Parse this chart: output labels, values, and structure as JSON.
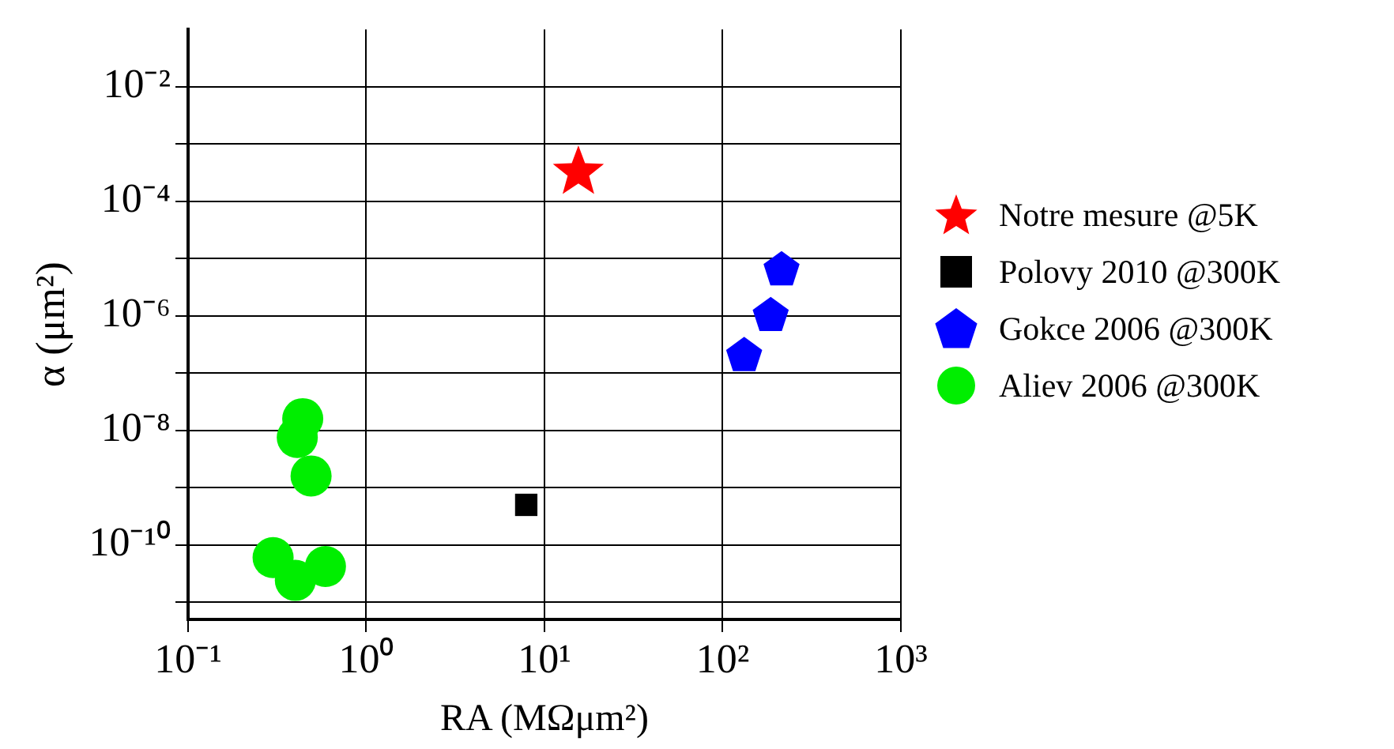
{
  "chart_data": {
    "type": "scatter",
    "xlabel": "RA (MΩμm²)",
    "ylabel": "α (μm²)",
    "log": "xy",
    "grid": true,
    "legend": "right",
    "xlim": [
      0.1,
      1000
    ],
    "xticks": [
      {
        "value": 0.1,
        "label": "10⁻¹"
      },
      {
        "value": 1,
        "label": "10⁰"
      },
      {
        "value": 10,
        "label": "10¹"
      },
      {
        "value": 100,
        "label": "10²"
      },
      {
        "value": 1000,
        "label": "10³"
      }
    ],
    "ylim": [
      5e-12,
      0.1
    ],
    "yticks": [
      {
        "value": 1e-11,
        "label": null
      },
      {
        "value": 1e-10,
        "label": "10⁻¹⁰"
      },
      {
        "value": 1e-09,
        "label": null
      },
      {
        "value": 1e-08,
        "label": "10⁻⁸"
      },
      {
        "value": 1e-07,
        "label": null
      },
      {
        "value": 1e-06,
        "label": "10⁻⁶"
      },
      {
        "value": 1e-05,
        "label": null
      },
      {
        "value": 0.0001,
        "label": "10⁻⁴"
      },
      {
        "value": 0.001,
        "label": null
      },
      {
        "value": 0.01,
        "label": "10⁻²"
      }
    ],
    "series": [
      {
        "name": "Notre mesure @5K",
        "color": "#ff0000",
        "marker": "star",
        "x": [
          15.5
        ],
        "values": [
          0.00032
        ]
      },
      {
        "name": "Polovy 2010 @300K",
        "color": "#000000",
        "marker": "square",
        "x": [
          7.9
        ],
        "values": [
          5e-10
        ]
      },
      {
        "name": "Gokce 2006 @300K",
        "color": "#0000ff",
        "x": [
          214,
          186,
          132
        ],
        "values": [
          6.3e-06,
          1e-06,
          2e-07
        ]
      },
      {
        "name": "Aliev 2006 @300K",
        "color": "#00ee00",
        "marker": "circle",
        "x": [
          0.44,
          0.41,
          0.49,
          0.3,
          0.4,
          0.59
        ],
        "values": [
          1.6e-08,
          7.5e-09,
          1.6e-09,
          6e-11,
          2.4e-11,
          4.2e-11
        ]
      }
    ]
  }
}
